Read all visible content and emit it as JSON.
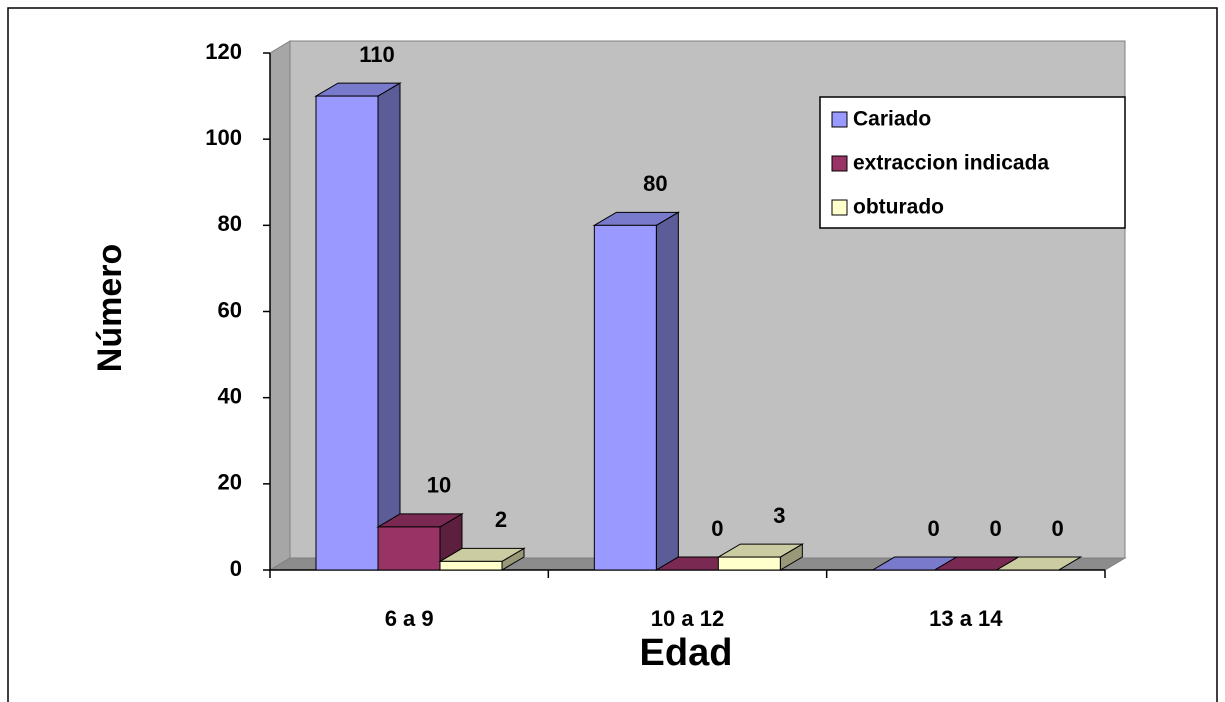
{
  "chart_data": {
    "type": "bar3d",
    "x_label": "Edad",
    "y_label": "Número",
    "categories": [
      "6 a 9",
      "10 a 12",
      "13 a 14"
    ],
    "series": [
      {
        "name": "Cariado",
        "color": "#9999ff",
        "values": [
          110,
          80,
          0
        ]
      },
      {
        "name": "extraccion indicada",
        "color": "#993366",
        "values": [
          10,
          0,
          0
        ]
      },
      {
        "name": "obturado",
        "color": "#ffffcc",
        "values": [
          2,
          3,
          0
        ]
      }
    ],
    "ylim": [
      0,
      120
    ],
    "yticks": [
      0,
      20,
      40,
      60,
      80,
      100,
      120
    ]
  }
}
